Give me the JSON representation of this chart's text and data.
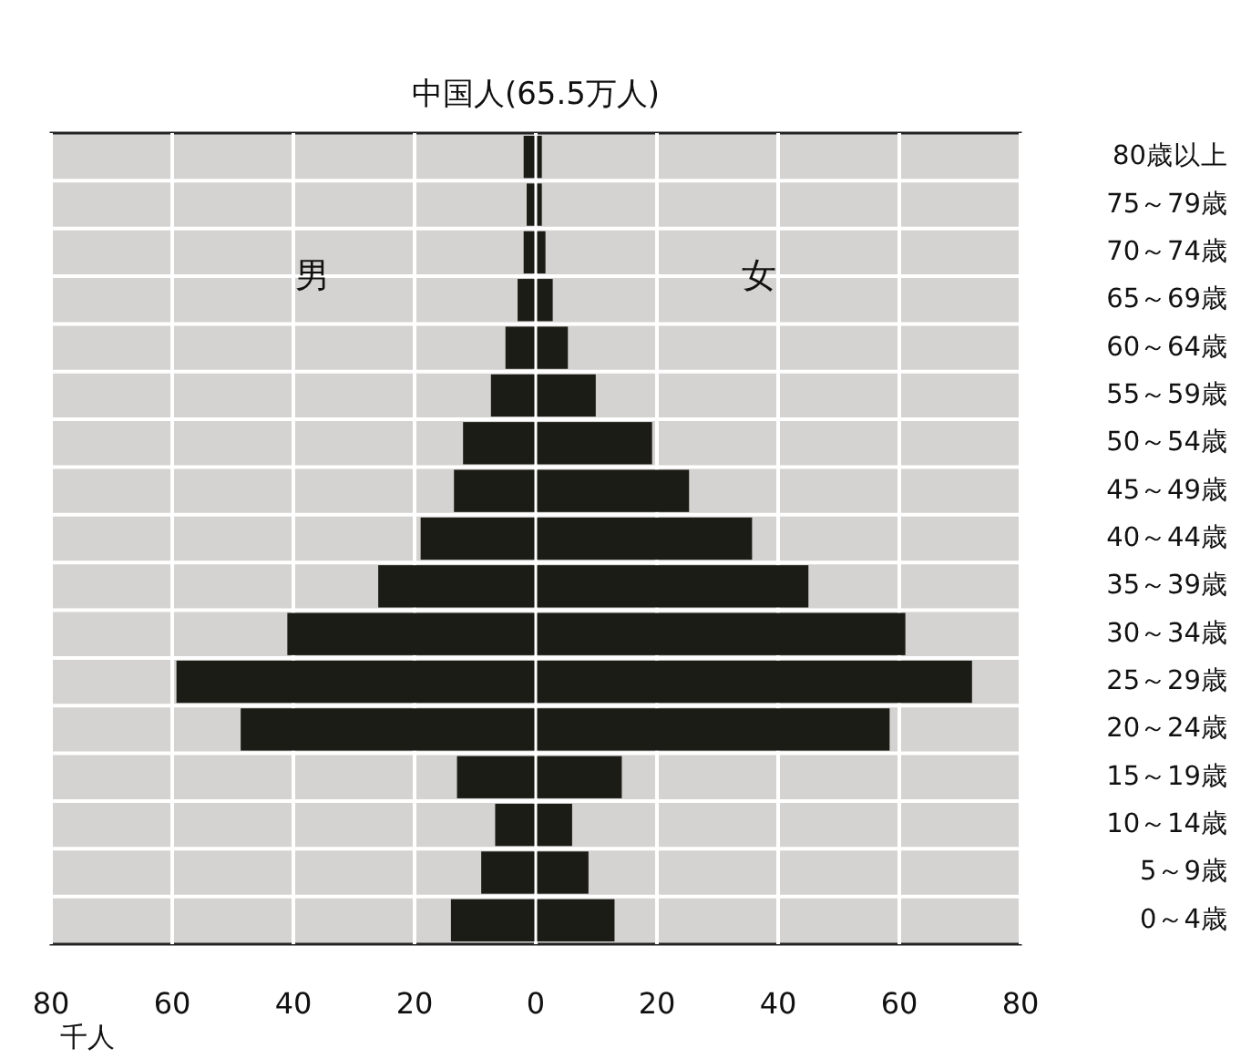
{
  "chart_data": {
    "type": "bar",
    "orientation": "horizontal",
    "title": "中国人(65.5万人)",
    "xlabel": "千人",
    "categories": [
      "80歳以上",
      "75～79歳",
      "70～74歳",
      "65～69歳",
      "60～64歳",
      "55～59歳",
      "50～54歳",
      "45～49歳",
      "40～44歳",
      "35～39歳",
      "30～34歳",
      "25～29歳",
      "20～24歳",
      "15～19歳",
      "10～14歳",
      "5～9歳",
      "0～4歳"
    ],
    "series": [
      {
        "color": "#1c1c16",
        "values": [
          -2,
          -1.5,
          -2,
          -3,
          -5,
          -7.4,
          -12,
          -13.5,
          -19,
          -26,
          -41,
          -59.3,
          -48.7,
          -13,
          -6.7,
          -9,
          -14
        ]
      },
      {
        "color": "#1c1c16",
        "values": [
          1,
          1,
          1.6,
          2.8,
          5.3,
          9.9,
          19.2,
          25.3,
          35.7,
          45,
          61,
          72,
          58.4,
          14.2,
          6,
          8.7,
          13
        ]
      }
    ],
    "xlim": [
      -80,
      80
    ],
    "xticks": [
      {
        "value": -80,
        "label": "80"
      },
      {
        "value": -60,
        "label": "60"
      },
      {
        "value": -40,
        "label": "40"
      },
      {
        "value": -20,
        "label": "20"
      },
      0,
      20,
      40,
      60,
      80
    ],
    "stacked": true,
    "annotations": [
      "男",
      "女"
    ],
    "grid": true
  }
}
